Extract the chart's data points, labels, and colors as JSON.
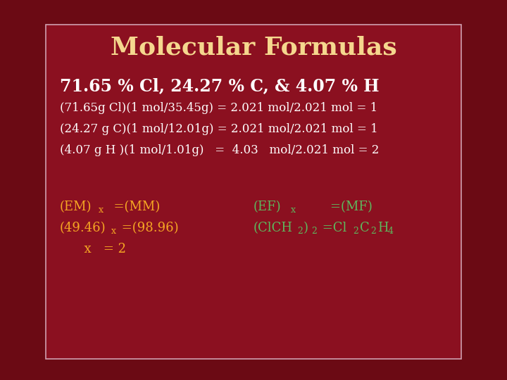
{
  "title": "Molecular Formulas",
  "title_color": "#F5D78E",
  "bg_outer": "#6B0A14",
  "bg_inner": "#8B1020",
  "border_color": "#D0A0B0",
  "subtitle": "71.65 % Cl, 24.27 % C, & 4.07 % H",
  "subtitle_color": "#FFFFFF",
  "line1": "(71.65g Cl)(1 mol/35.45g) = 2.021 mol/2.021 mol = 1",
  "line2": "(24.27 g C)(1 mol/12.01g) = 2.021 mol/2.021 mol = 1",
  "line3": "(4.07 g H )(1 mol/1.01g)   =  4.03   mol/2.021 mol = 2",
  "lines_color": "#FFFFFF",
  "bottom_color": "#F5A623",
  "green_color": "#5DB85D"
}
